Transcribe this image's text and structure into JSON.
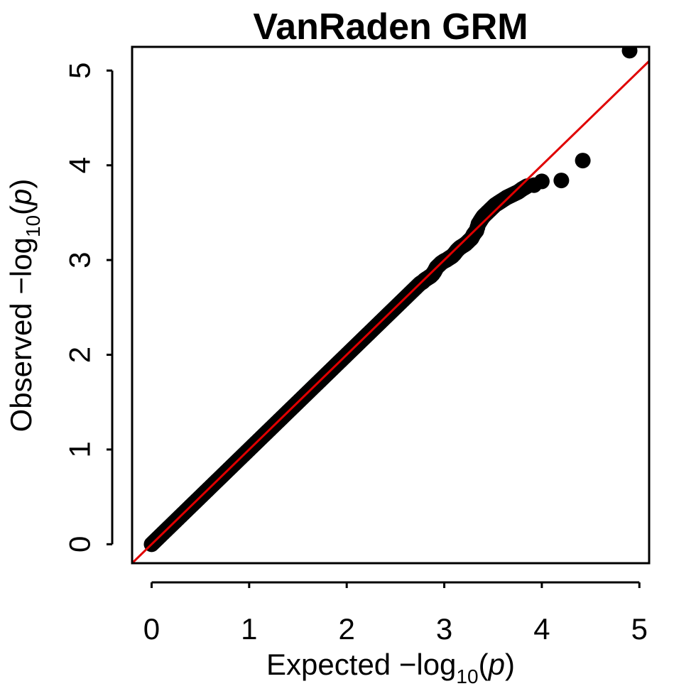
{
  "chart_data": {
    "type": "scatter",
    "title": "VanRaden GRM",
    "xlabel": {
      "prefix": "Expected  −log",
      "subscript": "10",
      "open": "(",
      "var": "p",
      "close": ")"
    },
    "ylabel": {
      "prefix": "Observed  −log",
      "subscript": "10",
      "open": "(",
      "var": "p",
      "close": ")"
    },
    "xlim": [
      -0.2,
      5.1
    ],
    "ylim": [
      -0.2,
      5.25
    ],
    "xticks": [
      0,
      1,
      2,
      3,
      4,
      5
    ],
    "yticks": [
      0,
      1,
      2,
      3,
      4,
      5
    ],
    "grid": false,
    "legend": "none",
    "point_color": "#000000",
    "reference_line": {
      "type": "identity",
      "slope": 1,
      "intercept": 0,
      "color": "#e00000"
    },
    "series": [
      {
        "x": [
          0.0,
          0.02,
          0.04,
          0.06,
          0.08,
          0.1,
          0.15,
          0.2,
          0.25,
          0.3,
          0.35,
          0.4,
          0.45,
          0.5,
          0.55,
          0.6,
          0.65,
          0.7,
          0.75,
          0.8,
          0.85,
          0.9,
          0.95,
          1.0,
          1.05,
          1.1,
          1.15,
          1.2,
          1.25,
          1.3,
          1.35,
          1.4,
          1.45,
          1.5,
          1.55,
          1.6,
          1.65,
          1.7,
          1.75,
          1.8,
          1.85,
          1.9,
          1.95,
          2.0,
          2.05,
          2.1,
          2.15,
          2.2,
          2.25,
          2.3,
          2.35,
          2.4,
          2.45,
          2.5,
          2.55,
          2.6,
          2.65,
          2.7,
          2.72,
          2.75,
          2.78,
          2.8,
          2.83,
          2.86,
          2.88,
          2.9,
          2.92,
          2.95,
          2.97,
          3.0,
          3.02,
          3.05,
          3.08,
          3.1,
          3.13,
          3.16,
          3.19,
          3.22,
          3.25,
          3.28,
          3.3,
          3.33,
          3.35,
          3.38,
          3.4,
          3.43,
          3.46,
          3.49,
          3.52,
          3.55,
          3.58,
          3.61,
          3.64,
          3.68,
          3.72,
          3.76,
          3.8,
          3.85,
          3.92,
          4.0,
          4.2,
          4.42,
          4.9
        ],
        "y": [
          0.0,
          0.02,
          0.04,
          0.06,
          0.08,
          0.1,
          0.15,
          0.2,
          0.25,
          0.3,
          0.35,
          0.4,
          0.45,
          0.5,
          0.55,
          0.6,
          0.65,
          0.7,
          0.75,
          0.8,
          0.85,
          0.9,
          0.95,
          1.0,
          1.05,
          1.1,
          1.15,
          1.2,
          1.25,
          1.3,
          1.35,
          1.4,
          1.45,
          1.5,
          1.55,
          1.6,
          1.65,
          1.7,
          1.75,
          1.8,
          1.85,
          1.9,
          1.95,
          2.0,
          2.05,
          2.1,
          2.15,
          2.2,
          2.25,
          2.3,
          2.35,
          2.4,
          2.45,
          2.5,
          2.55,
          2.6,
          2.65,
          2.7,
          2.72,
          2.75,
          2.77,
          2.79,
          2.81,
          2.83,
          2.85,
          2.88,
          2.92,
          2.95,
          2.97,
          2.99,
          3.0,
          3.02,
          3.04,
          3.06,
          3.1,
          3.13,
          3.15,
          3.17,
          3.2,
          3.23,
          3.27,
          3.31,
          3.38,
          3.43,
          3.46,
          3.49,
          3.52,
          3.55,
          3.58,
          3.6,
          3.62,
          3.64,
          3.66,
          3.68,
          3.7,
          3.72,
          3.75,
          3.78,
          3.79,
          3.83,
          3.84,
          4.05,
          5.21
        ]
      }
    ]
  }
}
